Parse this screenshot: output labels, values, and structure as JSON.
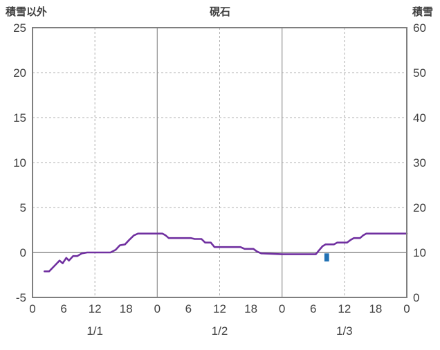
{
  "chart_data": {
    "type": "line",
    "title": "硯石",
    "left_axis": {
      "label": "積雪以外",
      "min": -5,
      "max": 25,
      "ticks": [
        25,
        20,
        15,
        10,
        5,
        0,
        -5
      ]
    },
    "right_axis": {
      "label": "積雪",
      "min": 0,
      "max": 60,
      "ticks": [
        60,
        50,
        40,
        30,
        20,
        10,
        0
      ]
    },
    "x_axis": {
      "total_hours": 72,
      "hour_tick_interval": 6,
      "hour_tick_labels": [
        "0",
        "6",
        "12",
        "18",
        "0",
        "6",
        "12",
        "18",
        "0",
        "6",
        "12",
        "18",
        "0"
      ],
      "day_labels": [
        "1/1",
        "1/2",
        "1/3"
      ]
    },
    "grid": {
      "h_dashed_values": [
        5,
        10,
        15,
        20
      ],
      "v_solid_hours": [
        24,
        48
      ],
      "v_dashed_hours": [
        12,
        36,
        60
      ],
      "zero_line_value": 0
    },
    "series": [
      {
        "name": "積雪以外",
        "type": "line",
        "axis": "left",
        "color": "#7030a0",
        "points": [
          [
            2.3,
            -2.1
          ],
          [
            3.2,
            -2.1
          ],
          [
            4.2,
            -1.5
          ],
          [
            5.2,
            -0.9
          ],
          [
            5.8,
            -1.2
          ],
          [
            6.5,
            -0.6
          ],
          [
            7.0,
            -0.9
          ],
          [
            7.8,
            -0.4
          ],
          [
            8.6,
            -0.4
          ],
          [
            9.5,
            -0.1
          ],
          [
            10.5,
            0
          ],
          [
            15,
            0
          ],
          [
            16,
            0.3
          ],
          [
            16.8,
            0.8
          ],
          [
            17.8,
            0.9
          ],
          [
            18.6,
            1.4
          ],
          [
            19.5,
            1.9
          ],
          [
            20.3,
            2.1
          ],
          [
            25,
            2.1
          ],
          [
            25.6,
            1.9
          ],
          [
            26.2,
            1.6
          ],
          [
            30.5,
            1.6
          ],
          [
            31.2,
            1.5
          ],
          [
            32.5,
            1.5
          ],
          [
            33.2,
            1.1
          ],
          [
            34.3,
            1.1
          ],
          [
            35,
            0.6
          ],
          [
            40,
            0.6
          ],
          [
            40.8,
            0.4
          ],
          [
            42.5,
            0.4
          ],
          [
            43.2,
            0.1
          ],
          [
            44,
            -0.1
          ],
          [
            48,
            -0.2
          ],
          [
            54.5,
            -0.2
          ],
          [
            55.2,
            0.3
          ],
          [
            55.8,
            0.7
          ],
          [
            56.4,
            0.9
          ],
          [
            58,
            0.9
          ],
          [
            58.6,
            1.1
          ],
          [
            60.5,
            1.1
          ],
          [
            61.2,
            1.4
          ],
          [
            61.8,
            1.6
          ],
          [
            63,
            1.6
          ],
          [
            63.6,
            1.9
          ],
          [
            64.2,
            2.1
          ],
          [
            72,
            2.1
          ]
        ]
      }
    ],
    "bars": [
      {
        "name": "積雪",
        "axis": "right",
        "color": "#2272b4",
        "hour": 56.6,
        "width_hours": 0.9,
        "from_value": 8.0,
        "to_value": 9.8
      }
    ],
    "colors": {
      "border": "#7f7f7f",
      "grid_dashed": "#b0b0b0",
      "grid_solid": "#9a9a9a",
      "zero_line": "#8c8c8c",
      "text": "#404040"
    }
  }
}
